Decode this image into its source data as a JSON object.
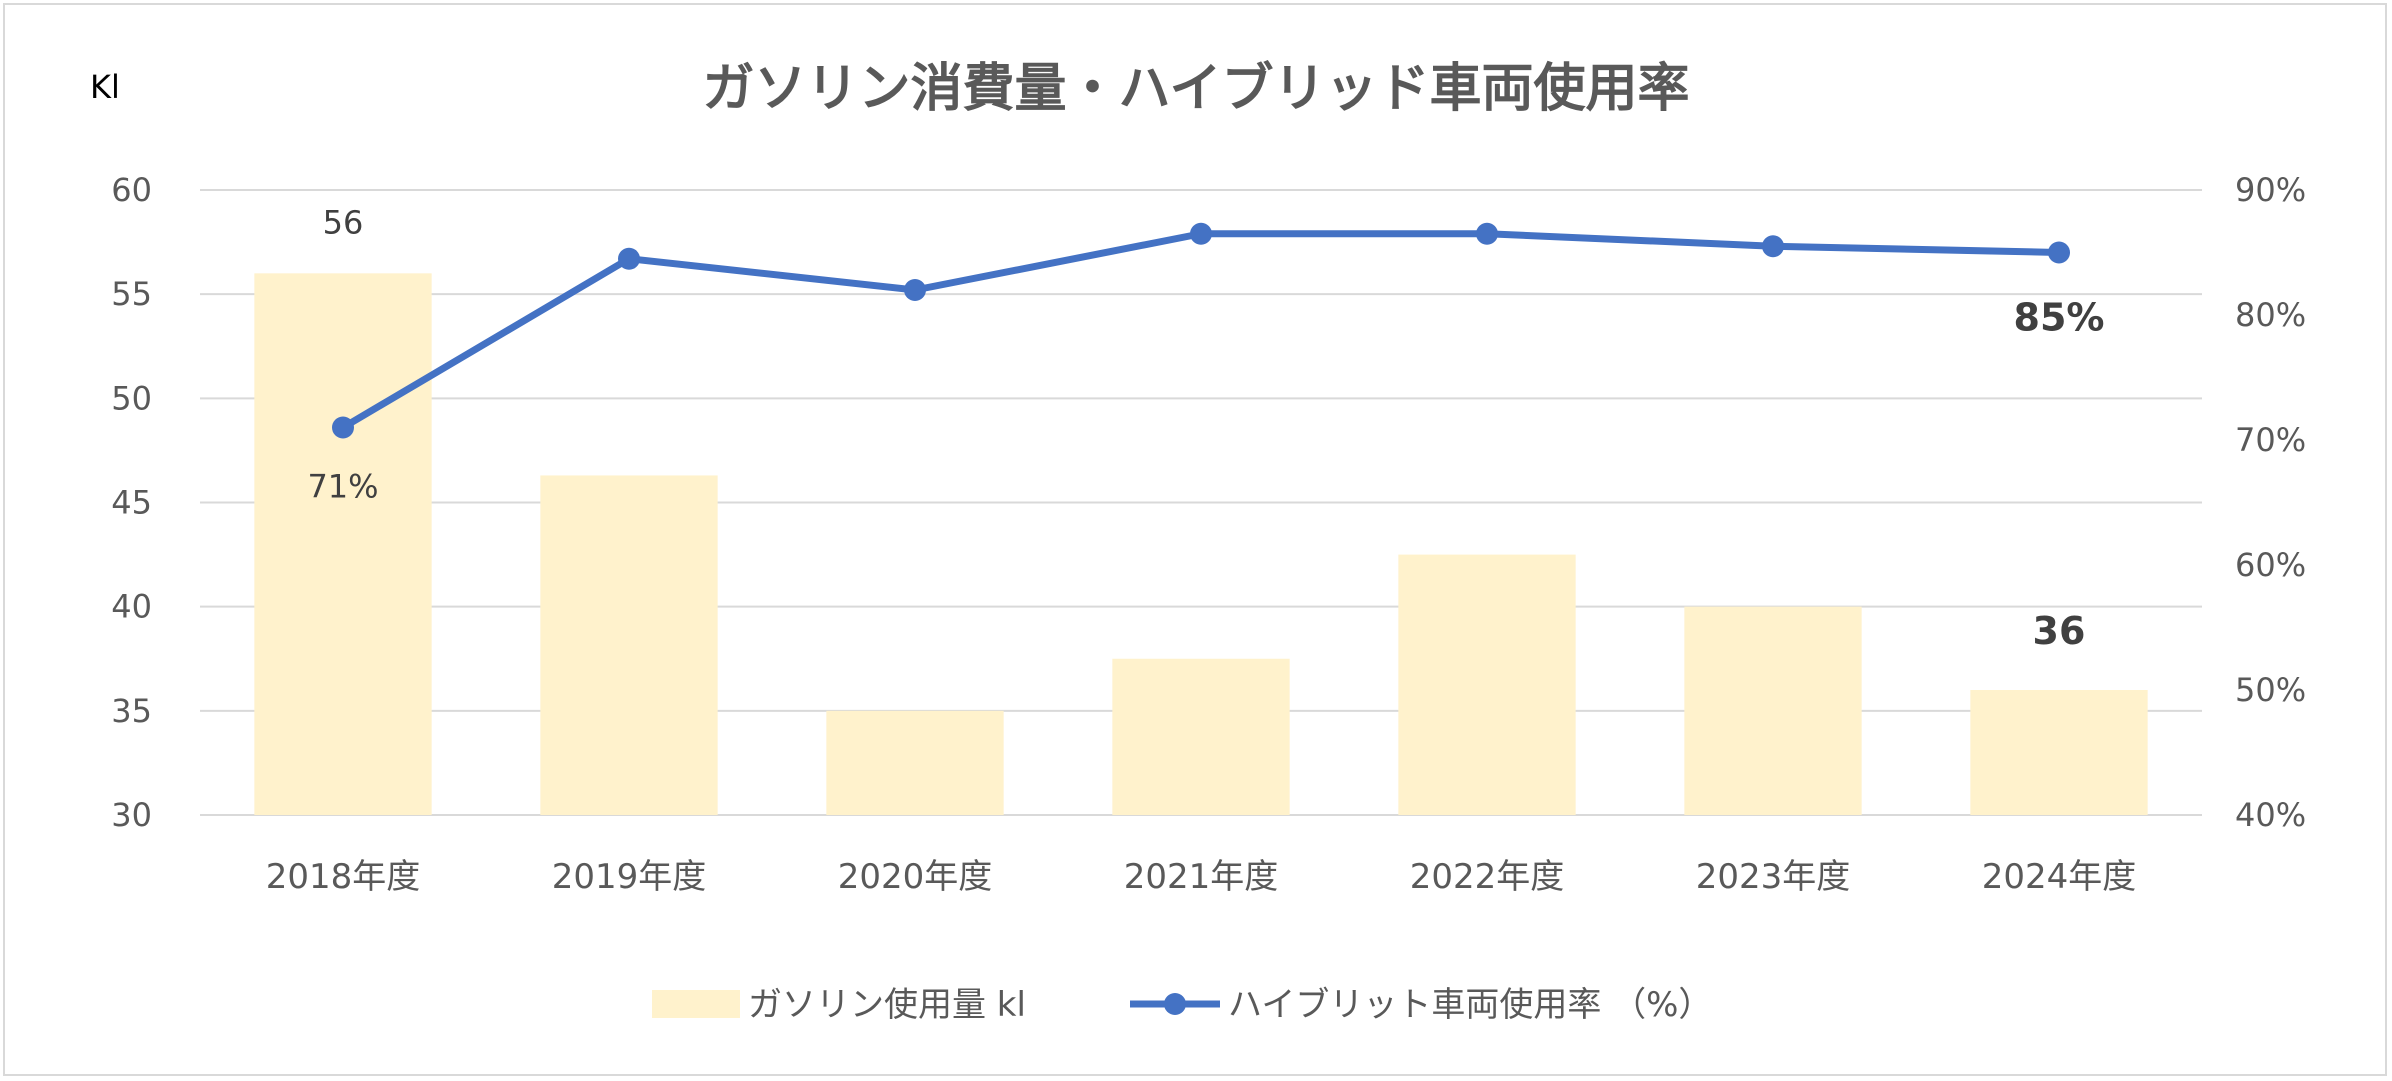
{
  "chart_data": {
    "type": "bar+line",
    "title": "ガソリン消費量・ハイブリッド車両使用率",
    "y_left_label": "Kl",
    "categories": [
      "2018年度",
      "2019年度",
      "2020年度",
      "2021年度",
      "2022年度",
      "2023年度",
      "2024年度"
    ],
    "series": [
      {
        "name": "ガソリン使用量 kl",
        "type": "bar",
        "axis": "left",
        "color": "#FFF2CC",
        "values": [
          56,
          46.3,
          35,
          37.5,
          42.5,
          40,
          36
        ]
      },
      {
        "name": "ハイブリット車両使用率 （%）",
        "type": "line",
        "axis": "right",
        "color": "#4472C4",
        "values": [
          71,
          84.5,
          82,
          86.5,
          86.5,
          85.5,
          85
        ]
      }
    ],
    "y_left": {
      "min": 30,
      "max": 60,
      "step": 5
    },
    "y_right": {
      "min": 40,
      "max": 90,
      "step": 10,
      "unit": "%"
    },
    "y_left_ticks": [
      "30",
      "35",
      "40",
      "45",
      "50",
      "55",
      "60"
    ],
    "y_right_ticks": [
      "40%",
      "50%",
      "60%",
      "70%",
      "80%",
      "90%"
    ],
    "data_labels": {
      "bar_first": "56",
      "bar_last": "36",
      "line_first": "71%",
      "line_last": "85%"
    },
    "grid": true,
    "legend_position": "bottom"
  }
}
